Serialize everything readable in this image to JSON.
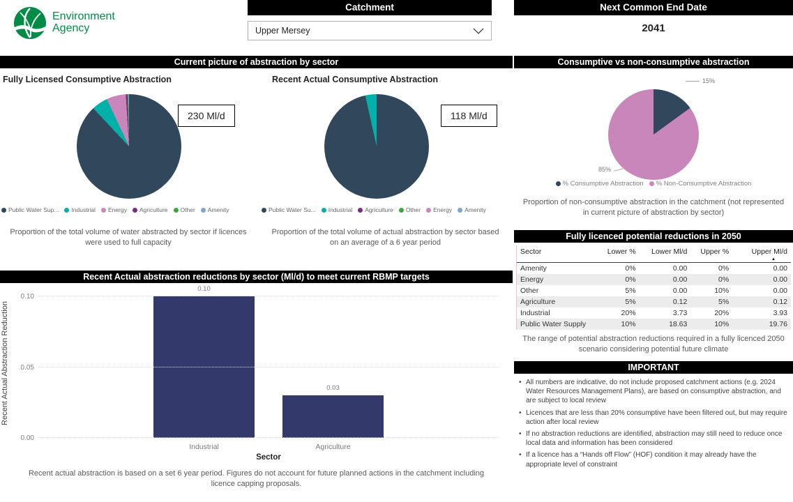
{
  "header": {
    "logo": {
      "line1": "Environment",
      "line2": "Agency"
    },
    "catchment": {
      "label": "Catchment",
      "selected_value": "Upper Mersey"
    },
    "next_common_end_date": {
      "label": "Next Common End Date",
      "value": "2041"
    }
  },
  "sections": {
    "current_picture_title": "Current picture of abstraction by sector"
  },
  "colors": {
    "header_bg": "#000000",
    "ea_green": "#008c47",
    "public_water_supply": "#31485c",
    "industrial": "#00b0a9",
    "energy": "#c886ba",
    "agriculture": "#7b2982",
    "other": "#37a83a",
    "amenity": "#7aa6d2",
    "bar_navy": "#333a6b"
  },
  "chart_data": [
    {
      "id": "fully_licensed_pie",
      "type": "pie",
      "title": "Fully Licensed Consumptive Abstraction",
      "total_label": "230 Ml/d",
      "caption": "Proportion of the total volume of water abstracted by sector if licences were used to full capacity",
      "legend_position": "bottom",
      "slices": [
        {
          "label": "Public Water Sup...",
          "value": 88,
          "color": "#31485c"
        },
        {
          "label": "Industrial",
          "value": 5,
          "color": "#00b0a9"
        },
        {
          "label": "Energy",
          "value": 6,
          "color": "#c886ba"
        },
        {
          "label": "Agriculture",
          "value": 0.5,
          "color": "#7b2982"
        },
        {
          "label": "Other",
          "value": 0.3,
          "color": "#37a83a"
        },
        {
          "label": "Amenity",
          "value": 0.2,
          "color": "#7aa6d2"
        }
      ]
    },
    {
      "id": "recent_actual_pie",
      "type": "pie",
      "title": "Recent Actual Consumptive Abstraction",
      "total_label": "118 Ml/d",
      "caption": "Proportion of the total volume of actual abstraction by sector based on an average of a 6 year period",
      "legend_position": "bottom",
      "slices": [
        {
          "label": "Public Water Su...",
          "value": 96.5,
          "color": "#31485c"
        },
        {
          "label": "Industrial",
          "value": 3.5,
          "color": "#00b0a9"
        },
        {
          "label": "Agriculture",
          "value": 0,
          "color": "#7b2982"
        },
        {
          "label": "Other",
          "value": 0,
          "color": "#37a83a"
        },
        {
          "label": "Energy",
          "value": 0,
          "color": "#c886ba"
        },
        {
          "label": "Amenity",
          "value": 0,
          "color": "#7aa6d2"
        }
      ]
    },
    {
      "id": "consumptive_vs_nonconsumptive_pie",
      "type": "pie",
      "title": "Consumptive vs non-consumptive abstraction",
      "caption": "Proportion of non-consumptive abstraction in the catchment (not represented in current picture of abstraction by sector)",
      "legend_position": "bottom",
      "slices": [
        {
          "label": "% Consumptive Abstraction",
          "value": 15,
          "color": "#31485c",
          "data_label": "15%"
        },
        {
          "label": "% Non-Consumptive Abstraction",
          "value": 85,
          "color": "#c886ba",
          "data_label": "85%"
        }
      ]
    },
    {
      "id": "reductions_bar",
      "type": "bar",
      "title": "Recent Actual abstraction reductions by sector (Ml/d) to meet current RBMP targets",
      "categories": [
        "Industrial",
        "Agriculture"
      ],
      "values": [
        0.1,
        0.03
      ],
      "value_labels": [
        "0.10",
        "0.03"
      ],
      "xlabel": "Sector",
      "ylabel": "Recent Actual Abstraction Reduction",
      "yticks": [
        "0.10",
        "0.05",
        "0.00"
      ],
      "ylim": [
        0,
        0.105
      ],
      "grid": "dotted",
      "bar_color": "#333a6b",
      "caption": "Recent actual abstraction is based on a set 6 year period. Figures do not account for future planned actions in the catchment including licence capping proposals."
    },
    {
      "id": "reductions_table",
      "type": "table",
      "title": "Fully licenced potential reductions in 2050",
      "columns": [
        "Sector",
        "Lower %",
        "Lower Ml/d",
        "Upper %",
        "Upper Ml/d"
      ],
      "sort_column": "Upper Ml/d",
      "rows": [
        [
          "Amenity",
          "0%",
          "0.00",
          "0%",
          "0.00"
        ],
        [
          "Energy",
          "0%",
          "0.00",
          "0%",
          "0.00"
        ],
        [
          "Other",
          "5%",
          "0.00",
          "10%",
          "0.00"
        ],
        [
          "Agriculture",
          "5%",
          "0.12",
          "5%",
          "0.12"
        ],
        [
          "Industrial",
          "20%",
          "3.73",
          "20%",
          "3.93"
        ],
        [
          "Public Water Supply",
          "10%",
          "18.63",
          "10%",
          "19.76"
        ]
      ],
      "caption": "The range of potential abstraction reductions required in a fully licenced 2050 scenario considering potential future climate"
    }
  ],
  "important": {
    "title": "IMPORTANT",
    "bullets": [
      "All numbers are indicative, do not include proposed catchment actions (e.g. 2024 Water Resources Management Plans), are based on consumptive abstraction, and are subject to local review",
      "Licences that are less than 20% consumptive have been filtered out, but may require action after local review",
      "If no abstraction reductions are identified, abstraction may still need to reduce once local data and information has been considered",
      "If a licence has a “Hands off Flow” (HOF) condition it may already have the appropriate level of constraint"
    ]
  }
}
